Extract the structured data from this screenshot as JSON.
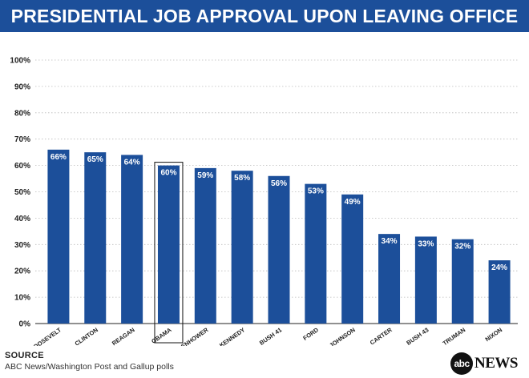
{
  "header": {
    "title": "PRESIDENTIAL JOB APPROVAL UPON LEAVING OFFICE"
  },
  "footer": {
    "source_title": "SOURCE",
    "source_text": "ABC News/Washington Post and Gallup polls",
    "logo_circle": "abc",
    "logo_text": "NEWS"
  },
  "colors": {
    "banner": "#1c4f9a",
    "bar": "#1c4f9a",
    "highlight_border": "#111111",
    "grid": "#bbbbbb"
  },
  "chart_data": {
    "type": "bar",
    "title": "PRESIDENTIAL JOB APPROVAL UPON LEAVING OFFICE",
    "xlabel": "",
    "ylabel": "",
    "ylim": [
      0,
      100
    ],
    "yticks": [
      "0%",
      "10%",
      "20%",
      "30%",
      "40%",
      "50%",
      "60%",
      "70%",
      "80%",
      "90%",
      "100%"
    ],
    "grid": "horizontal dotted",
    "categories": [
      "ROOSEVELT",
      "CLINTON",
      "REAGAN",
      "OBAMA",
      "EISENHOWER",
      "KENNEDY",
      "BUSH 41",
      "FORD",
      "JOHNSON",
      "CARTER",
      "BUSH 43",
      "TRUMAN",
      "NIXON"
    ],
    "values": [
      66,
      65,
      64,
      60,
      59,
      58,
      56,
      53,
      49,
      34,
      33,
      32,
      24
    ],
    "value_labels": [
      "66%",
      "65%",
      "64%",
      "60%",
      "59%",
      "58%",
      "56%",
      "53%",
      "49%",
      "34%",
      "33%",
      "32%",
      "24%"
    ],
    "highlighted": "OBAMA"
  }
}
